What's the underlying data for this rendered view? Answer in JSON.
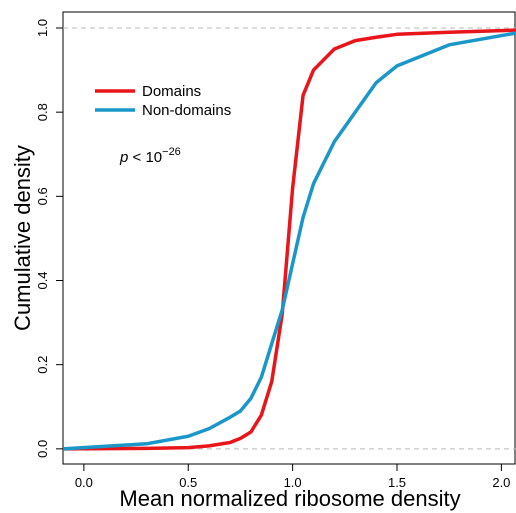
{
  "chart_data": {
    "type": "line",
    "xlabel": "Mean normalized ribosome density",
    "ylabel": "Cumulative density",
    "annotation": {
      "italic": "p",
      "text": "< 10",
      "superscript": "−26"
    },
    "x": [
      -0.1,
      0.3,
      0.5,
      0.6,
      0.7,
      0.75,
      0.8,
      0.85,
      0.9,
      0.95,
      1.0,
      1.05,
      1.1,
      1.2,
      1.3,
      1.4,
      1.5,
      1.75,
      2.07
    ],
    "series": [
      {
        "name": "Domains",
        "color": "#e8151b",
        "values": [
          0,
          0.001,
          0.003,
          0.007,
          0.015,
          0.025,
          0.04,
          0.08,
          0.16,
          0.32,
          0.62,
          0.84,
          0.9,
          0.95,
          0.97,
          0.978,
          0.985,
          0.99,
          0.995
        ]
      },
      {
        "name": "Non-domains",
        "color": "#1a97c8",
        "values": [
          0,
          0.012,
          0.03,
          0.048,
          0.075,
          0.09,
          0.12,
          0.17,
          0.25,
          0.33,
          0.44,
          0.55,
          0.63,
          0.73,
          0.8,
          0.87,
          0.91,
          0.96,
          0.988
        ]
      }
    ],
    "xlim": [
      -0.1,
      2.07
    ],
    "ylim": [
      -0.036,
      1.038
    ],
    "xticks": [
      {
        "value": 0,
        "label": "0.0"
      },
      0.5,
      {
        "value": 1,
        "label": "1.0"
      },
      1.5,
      {
        "value": 2,
        "label": "2.0"
      }
    ],
    "yticks": [
      {
        "value": 0,
        "label": "0.0"
      },
      0.2,
      0.4,
      0.6,
      0.8,
      {
        "value": 1,
        "label": "1.0"
      }
    ],
    "hlines": [
      0,
      1
    ],
    "legend": "top-left"
  }
}
